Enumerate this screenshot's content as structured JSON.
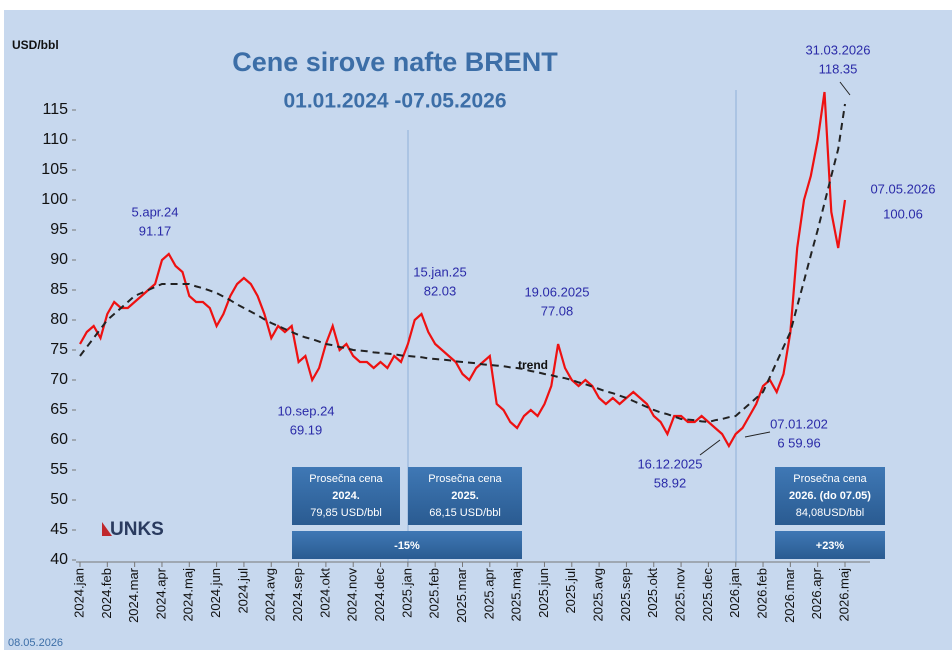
{
  "chart_data": {
    "type": "line",
    "title": "Cene sirove nafte BRENT",
    "subtitle": "01.01.2024 -07.05.2026",
    "y_label": "USD/bbl",
    "footer": "08.05.2026",
    "logo": "UNKS",
    "trend_label": "trend",
    "categories": [
      "2024.jan",
      null,
      null,
      null,
      "2024.feb",
      null,
      null,
      null,
      "2024.mar",
      null,
      null,
      null,
      "2024.apr",
      null,
      null,
      null,
      "2024.maj",
      null,
      null,
      null,
      "2024.jun",
      null,
      null,
      null,
      "2024.jul",
      null,
      null,
      null,
      "2024.avg",
      null,
      null,
      null,
      "2024.sep",
      null,
      null,
      null,
      "2024.okt",
      null,
      null,
      null,
      "2024.nov",
      null,
      null,
      null,
      "2024.dec",
      null,
      null,
      null,
      "2025.jan",
      null,
      null,
      null,
      "2025.feb",
      null,
      null,
      null,
      "2025.mar",
      null,
      null,
      null,
      "2025.apr",
      null,
      null,
      null,
      "2025.maj",
      null,
      null,
      null,
      "2025.jun",
      null,
      null,
      null,
      "2025.jul",
      null,
      null,
      null,
      "2025.avg",
      null,
      null,
      null,
      "2025.sep",
      null,
      null,
      null,
      "2025.okt",
      null,
      null,
      null,
      "2025.nov",
      null,
      null,
      null,
      "2025.dec",
      null,
      null,
      null,
      "2026.jan",
      null,
      null,
      null,
      "2026.feb",
      null,
      null,
      null,
      "2026.mar",
      null,
      null,
      null,
      "2026.apr",
      null,
      null,
      null,
      "2026.maj"
    ],
    "series": [
      {
        "name": "BRENT",
        "color": "#ee1111",
        "values": [
          76,
          78,
          79,
          77,
          81,
          83,
          82,
          82,
          83,
          84,
          85,
          86,
          90,
          91,
          89,
          88,
          84,
          83,
          83,
          82,
          79,
          81,
          84,
          86,
          87,
          86,
          84,
          81,
          77,
          79,
          78,
          79,
          73,
          74,
          70,
          72,
          76,
          79,
          75,
          76,
          74,
          73,
          73,
          72,
          73,
          72,
          74,
          73,
          76,
          80,
          81,
          78,
          76,
          75,
          74,
          73,
          71,
          70,
          72,
          73,
          74,
          66,
          65,
          63,
          62,
          64,
          65,
          64,
          66,
          69,
          76,
          72,
          70,
          69,
          70,
          69,
          67,
          66,
          67,
          66,
          67,
          68,
          67,
          66,
          64,
          63,
          61,
          64,
          64,
          63,
          63,
          64,
          63,
          62,
          61,
          59,
          61,
          62,
          64,
          66,
          69,
          70,
          68,
          71,
          78,
          92,
          100,
          104,
          110,
          118,
          98,
          92,
          100
        ]
      },
      {
        "name": "trend",
        "color": "#222222",
        "dashed": true,
        "values": [
          74,
          75.5,
          77,
          78.5,
          80,
          81,
          82,
          83,
          84,
          84.5,
          85,
          85.5,
          86,
          86,
          86,
          86,
          86,
          85.6,
          85.3,
          84.9,
          84.5,
          83.9,
          83.3,
          82.6,
          82,
          81.4,
          80.8,
          80.1,
          79.5,
          79,
          78.5,
          78,
          77.5,
          77.1,
          76.8,
          76.4,
          76,
          75.8,
          75.5,
          75.3,
          75,
          74.9,
          74.8,
          74.6,
          74.5,
          74.4,
          74.3,
          74.1,
          74,
          73.9,
          73.8,
          73.6,
          73.5,
          73.4,
          73.3,
          73.1,
          73,
          72.9,
          72.8,
          72.6,
          72.5,
          72.4,
          72.3,
          72.1,
          72,
          71.8,
          71.5,
          71.3,
          71,
          70.8,
          70.5,
          70.3,
          70,
          69.6,
          69.3,
          68.9,
          68.5,
          68.1,
          67.8,
          67.4,
          67,
          66.5,
          66,
          65.5,
          65,
          64.6,
          64.3,
          63.9,
          63.5,
          63.4,
          63.3,
          63.1,
          63,
          63.3,
          63.5,
          63.8,
          64,
          65,
          66,
          67,
          68,
          70.5,
          73,
          75.5,
          78,
          82.3,
          86.5,
          90.8,
          95,
          99.5,
          104,
          108.5,
          116
        ]
      }
    ],
    "ylim": [
      40,
      120
    ],
    "yticks": [
      40,
      45,
      50,
      55,
      60,
      65,
      70,
      75,
      80,
      85,
      90,
      95,
      100,
      105,
      110,
      115
    ],
    "annotations": [
      {
        "lines": [
          "5.apr.24",
          "91.17"
        ]
      },
      {
        "lines": [
          "10.sep.24",
          "69.19"
        ]
      },
      {
        "lines": [
          "15.jan.25",
          "82.03"
        ]
      },
      {
        "lines": [
          "19.06.2025",
          "77.08"
        ]
      },
      {
        "lines": [
          "16.12.2025",
          "58.92"
        ]
      },
      {
        "lines": [
          "07.01.202",
          "6 59.96"
        ]
      },
      {
        "lines": [
          "31.03.2026",
          "118.35"
        ]
      },
      {
        "lines": [
          "07.05.2026",
          "100.06"
        ]
      }
    ],
    "boxes": [
      {
        "lines": [
          "Prosečna cena",
          "2024.",
          "79,85 USD/bbl"
        ]
      },
      {
        "lines": [
          "Prosečna cena",
          "2025.",
          "68,15 USD/bbl"
        ]
      },
      {
        "lines": [
          "Prosečna cena",
          "2026. (do 07.05)",
          "84,08USD/bbl"
        ]
      }
    ],
    "changes": [
      "-15%",
      "+23%"
    ]
  }
}
